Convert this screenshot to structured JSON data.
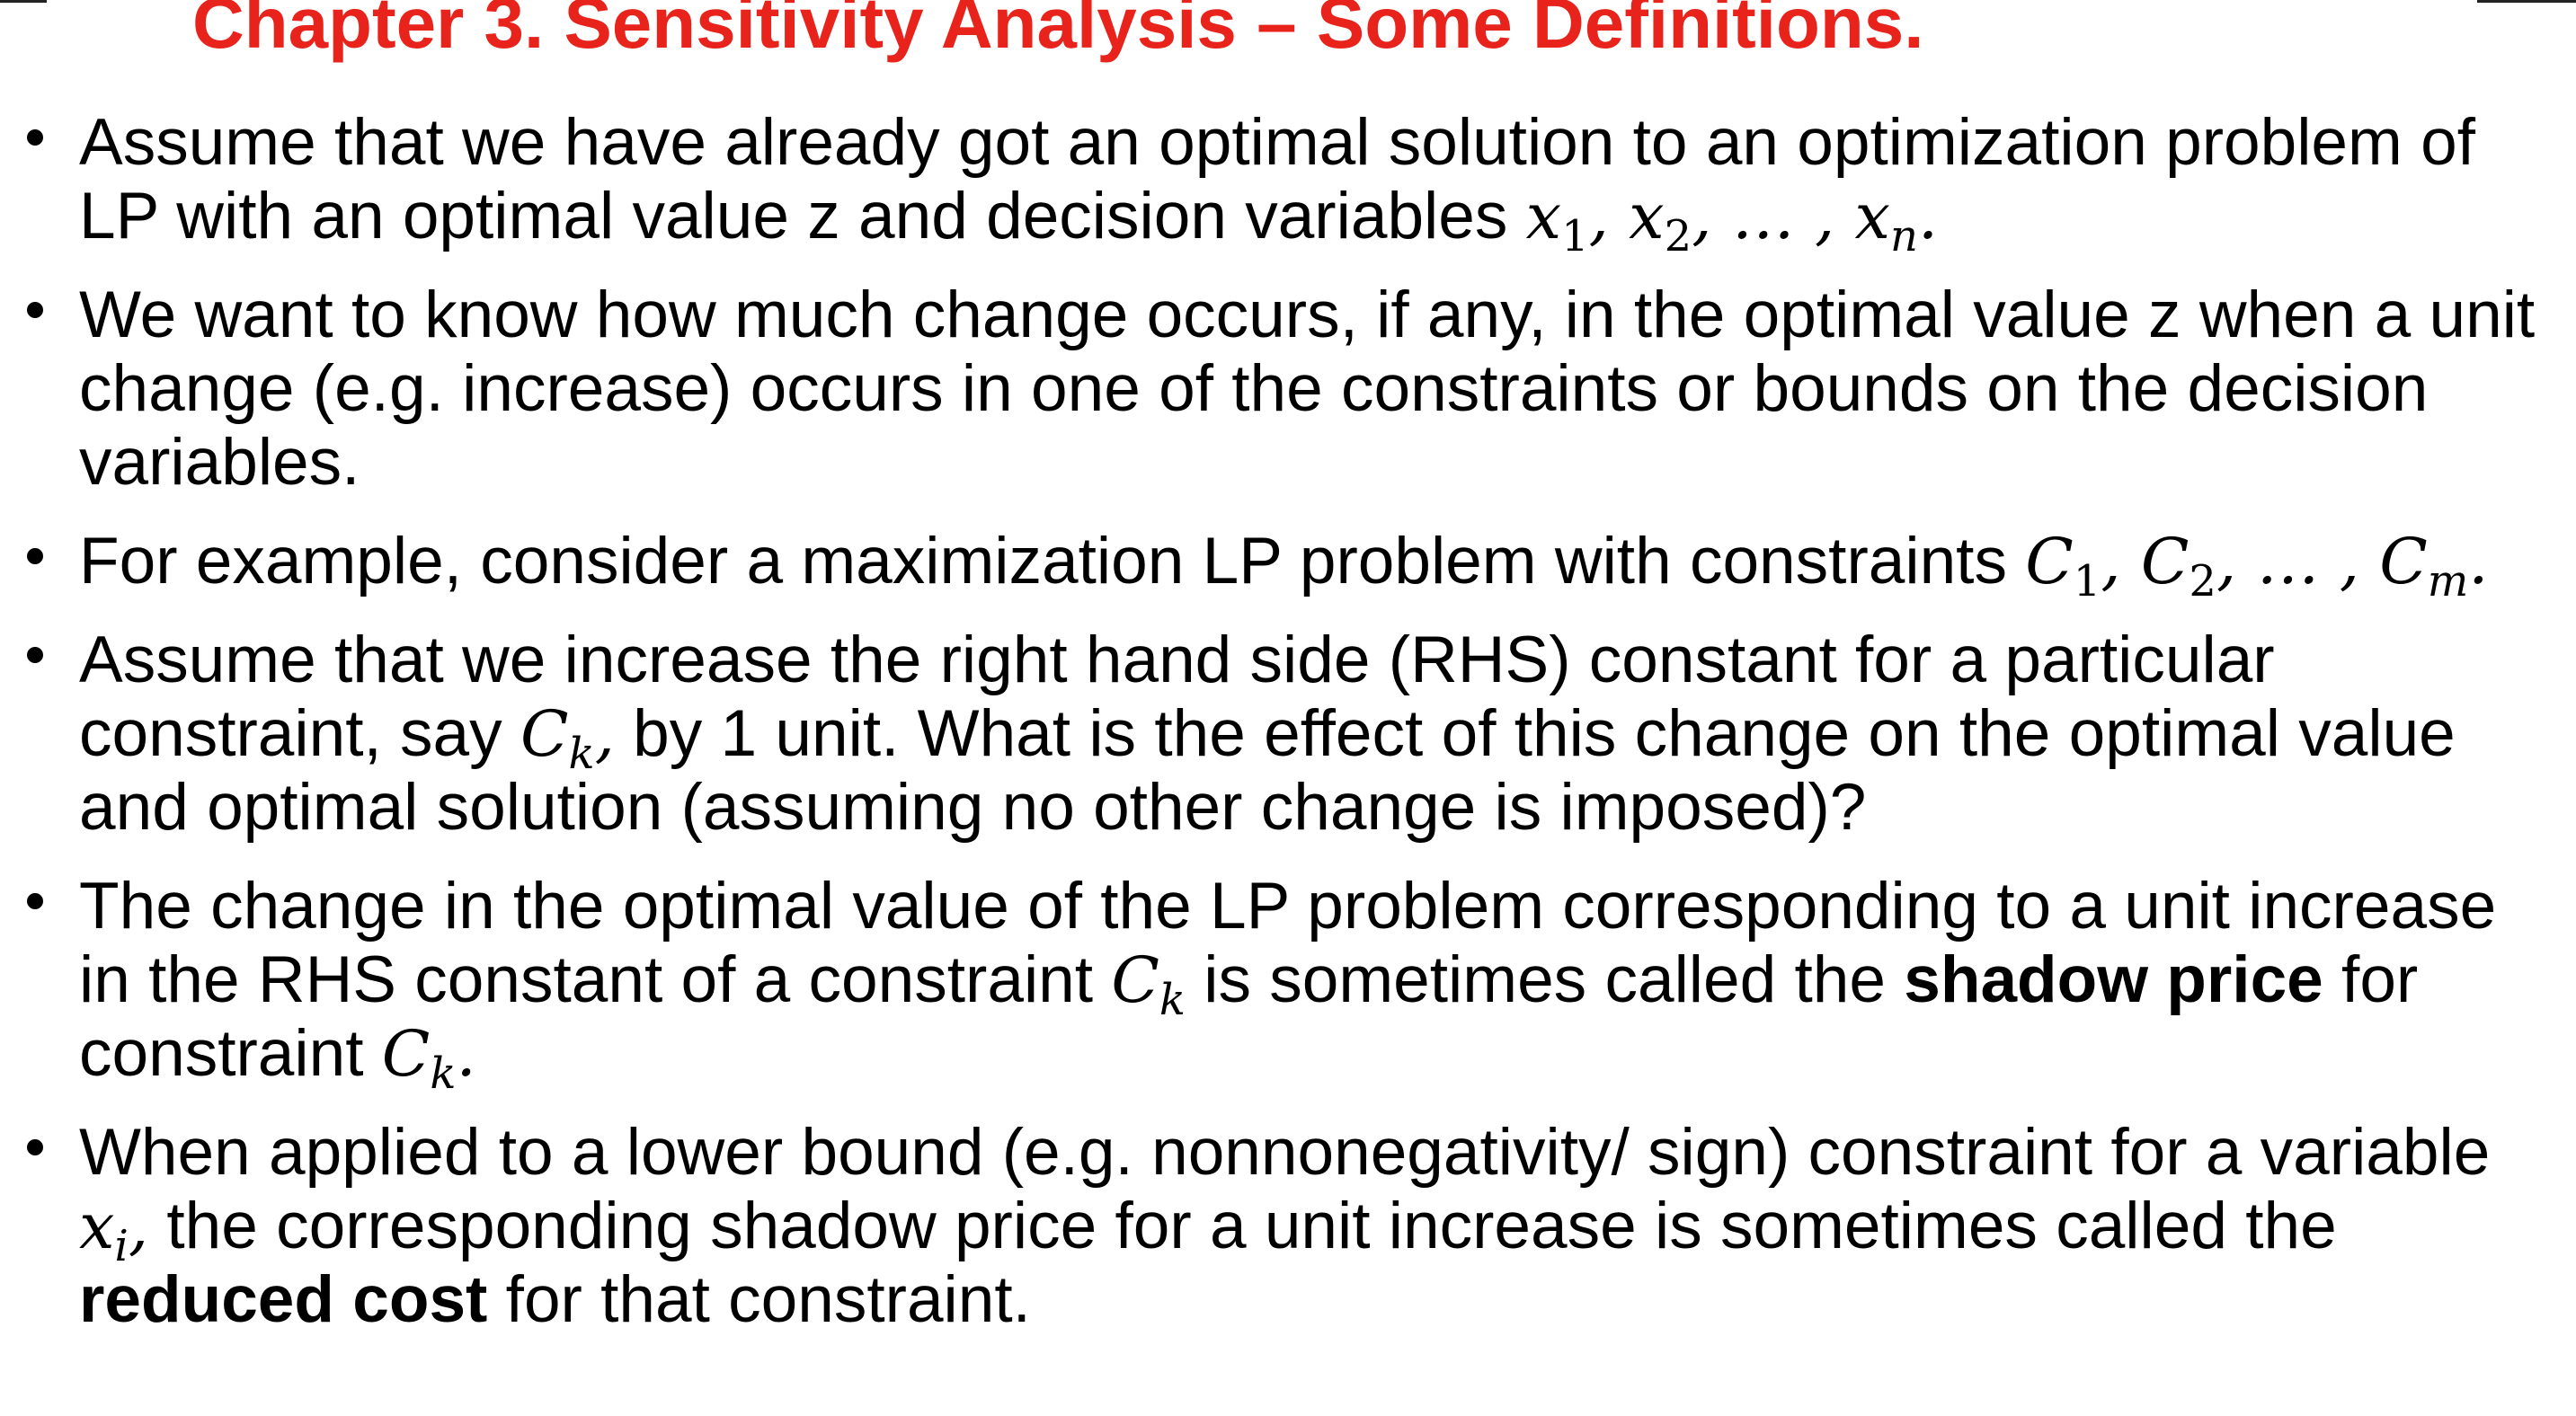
{
  "title": {
    "text": "Chapter 3. Sensitivity Analysis – Some Definitions.",
    "color": "#e8231c"
  },
  "bullets": [
    {
      "text_a": "Assume that we have already got an optimal solution to an optimization problem of LP with an optimal value z and decision variables ",
      "math": "x1, x2, … , xn."
    },
    {
      "text": "We want to know how much change occurs, if any, in the optimal value z when a unit change (e.g. increase) occurs in one of the constraints or bounds on the decision variables."
    },
    {
      "text_a": "For example, consider a maximization LP problem with constraints ",
      "math": "C1, C2, … , Cm."
    },
    {
      "text_a": "Assume that we increase the right hand side (RHS) constant for a particular constraint, say ",
      "math": "Ck,",
      "text_b": " by 1 unit. What is the effect of this change on the optimal value and optimal solution (assuming no other change is imposed)?"
    },
    {
      "text_a": "The change in the optimal value of the LP problem corresponding to a unit increase in the RHS constant of a constraint ",
      "math_a": "Ck",
      "text_b": " is sometimes called the ",
      "bold": "shadow price",
      "text_c": " for constraint ",
      "math_b": "Ck."
    },
    {
      "text_a": "When applied to a lower bound (e.g. nonnonegativity/ sign) constraint for a variable ",
      "math": "xi,",
      "text_b": " the corresponding shadow price for a unit increase is sometimes called the ",
      "bold": "reduced cost",
      "text_c": " for that constraint."
    }
  ]
}
